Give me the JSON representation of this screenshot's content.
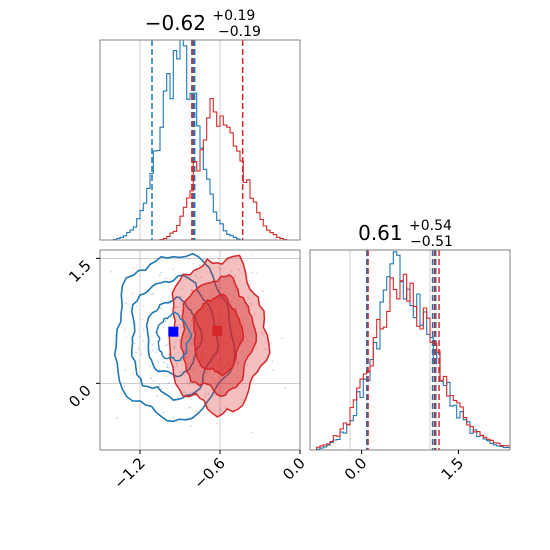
{
  "colors": {
    "blue": "#1f77b4",
    "red": "#d62728",
    "grid": "#b0b0b0",
    "axis": "#000000"
  },
  "chart_data": [
    {
      "type": "histogram",
      "panel": "top-left marginal",
      "title": {
        "median": "−0.62",
        "plus": "+0.19",
        "minus": "−0.19"
      },
      "x_range": [
        -1.5,
        0.0
      ],
      "grid": true,
      "series": [
        {
          "color": "#1f77b4",
          "quantile_lines": [
            -1.11,
            -0.8,
            -0.79
          ],
          "profile": [
            [
              -1.45,
              0
            ],
            [
              -1.4,
              0
            ],
            [
              -1.35,
              1
            ],
            [
              -1.3,
              3
            ],
            [
              -1.25,
              6
            ],
            [
              -1.2,
              12
            ],
            [
              -1.15,
              22
            ],
            [
              -1.1,
              38
            ],
            [
              -1.05,
              58
            ],
            [
              -1.0,
              80
            ],
            [
              -0.95,
              94
            ],
            [
              -0.9,
              100
            ],
            [
              -0.85,
              92
            ],
            [
              -0.8,
              74
            ],
            [
              -0.75,
              52
            ],
            [
              -0.7,
              32
            ],
            [
              -0.65,
              18
            ],
            [
              -0.6,
              9
            ],
            [
              -0.55,
              4
            ],
            [
              -0.5,
              2
            ],
            [
              -0.45,
              0
            ],
            [
              -0.4,
              0
            ]
          ]
        },
        {
          "color": "#d62728",
          "quantile_lines": [
            -0.81,
            -0.81,
            -0.43
          ],
          "profile": [
            [
              -1.05,
              0
            ],
            [
              -1.0,
              1
            ],
            [
              -0.95,
              4
            ],
            [
              -0.9,
              10
            ],
            [
              -0.85,
              20
            ],
            [
              -0.8,
              33
            ],
            [
              -0.75,
              48
            ],
            [
              -0.7,
              60
            ],
            [
              -0.65,
              68
            ],
            [
              -0.6,
              70
            ],
            [
              -0.55,
              66
            ],
            [
              -0.5,
              57
            ],
            [
              -0.45,
              44
            ],
            [
              -0.4,
              31
            ],
            [
              -0.35,
              20
            ],
            [
              -0.3,
              12
            ],
            [
              -0.25,
              6
            ],
            [
              -0.2,
              3
            ],
            [
              -0.15,
              1
            ],
            [
              -0.1,
              0
            ],
            [
              -0.05,
              0
            ]
          ]
        }
      ]
    },
    {
      "type": "contour",
      "panel": "bottom-left joint",
      "x_range": [
        -1.5,
        0.0
      ],
      "y_range": [
        -0.8,
        1.6
      ],
      "xticks": [
        "−1.2",
        "−0.6",
        "0.0"
      ],
      "yticks": [
        "1.5",
        "0.0"
      ],
      "grid": true,
      "series": [
        {
          "color": "#1f77b4",
          "center": [
            -0.95,
            0.55
          ],
          "spread": [
            0.2,
            0.45
          ],
          "marker": [
            -0.95,
            0.62
          ]
        },
        {
          "color": "#d62728",
          "center": [
            -0.62,
            0.58
          ],
          "spread": [
            0.18,
            0.46
          ],
          "marker": [
            -0.62,
            0.63
          ]
        }
      ]
    },
    {
      "type": "histogram",
      "panel": "bottom-right marginal",
      "title": {
        "median": "0.61",
        "plus": "+0.54",
        "minus": "−0.51"
      },
      "x_range": [
        -0.8,
        2.3
      ],
      "xticks": [
        "0.0",
        "1.5"
      ],
      "grid": true,
      "series": [
        {
          "color": "#1f77b4",
          "quantile_lines": [
            0.08,
            1.1,
            1.15
          ],
          "profile": [
            [
              -0.7,
              0
            ],
            [
              -0.55,
              2
            ],
            [
              -0.4,
              5
            ],
            [
              -0.25,
              11
            ],
            [
              -0.1,
              22
            ],
            [
              0.05,
              36
            ],
            [
              0.2,
              55
            ],
            [
              0.35,
              74
            ],
            [
              0.5,
              92
            ],
            [
              0.65,
              100
            ],
            [
              0.8,
              90
            ],
            [
              0.95,
              72
            ],
            [
              1.1,
              55
            ],
            [
              1.25,
              40
            ],
            [
              1.4,
              27
            ],
            [
              1.55,
              18
            ],
            [
              1.7,
              11
            ],
            [
              1.85,
              7
            ],
            [
              2.0,
              4
            ],
            [
              2.15,
              2
            ],
            [
              2.3,
              1
            ]
          ]
        },
        {
          "color": "#d62728",
          "quantile_lines": [
            0.1,
            1.13,
            1.2
          ],
          "profile": [
            [
              -0.7,
              1
            ],
            [
              -0.55,
              3
            ],
            [
              -0.4,
              7
            ],
            [
              -0.25,
              13
            ],
            [
              -0.1,
              24
            ],
            [
              0.05,
              37
            ],
            [
              0.2,
              55
            ],
            [
              0.35,
              72
            ],
            [
              0.5,
              84
            ],
            [
              0.65,
              88
            ],
            [
              0.8,
              82
            ],
            [
              0.95,
              68
            ],
            [
              1.1,
              54
            ],
            [
              1.25,
              41
            ],
            [
              1.4,
              29
            ],
            [
              1.55,
              20
            ],
            [
              1.7,
              13
            ],
            [
              1.85,
              8
            ],
            [
              2.0,
              5
            ],
            [
              2.15,
              3
            ],
            [
              2.3,
              2
            ]
          ]
        }
      ]
    }
  ]
}
